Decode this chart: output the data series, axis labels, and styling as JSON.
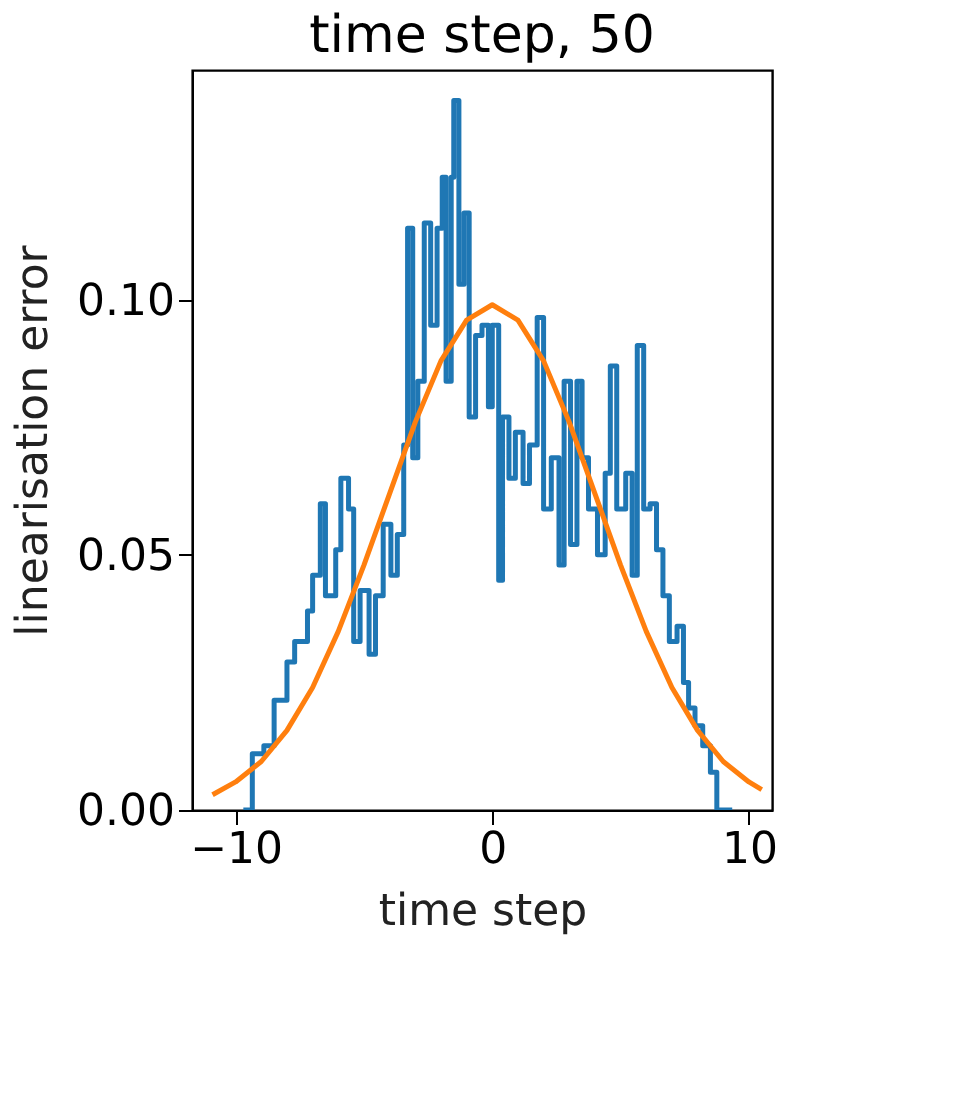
{
  "chart_data": {
    "type": "step",
    "title": "time step, 50",
    "xlabel": "time step",
    "ylabel": "linearisation error",
    "xlim": [
      -11.7,
      10.9
    ],
    "xticks": [
      {
        "value": -10,
        "label": "−10"
      },
      0,
      10
    ],
    "ylim": [
      0,
      0.145
    ],
    "yticks": [
      {
        "value": 0,
        "label": "0.00"
      },
      {
        "value": 0.05,
        "label": "0.05"
      },
      {
        "value": 0.1,
        "label": "0.10"
      }
    ],
    "grid": false,
    "line_style": "solid",
    "marker": "none",
    "series": [
      {
        "color": "#1f77b4",
        "x": [
          -9.7,
          -9.35,
          -8.9,
          -8.5,
          -8.0,
          -7.7,
          -7.2,
          -7.0,
          -6.7,
          -6.5,
          -6.1,
          -5.9,
          -5.6,
          -5.4,
          -5.15,
          -4.8,
          -4.55,
          -4.25,
          -3.95,
          -3.7,
          -3.45,
          -3.3,
          -3.1,
          -2.9,
          -2.65,
          -2.4,
          -2.15,
          -1.95,
          -1.8,
          -1.6,
          -1.5,
          -1.3,
          -1.1,
          -0.9,
          -0.65,
          -0.4,
          -0.15,
          0.0,
          0.25,
          0.4,
          0.65,
          0.9,
          1.2,
          1.45,
          1.75,
          2.0,
          2.3,
          2.6,
          2.8,
          3.05,
          3.3,
          3.5,
          3.75,
          4.1,
          4.4,
          4.6,
          4.85,
          5.2,
          5.45,
          5.65,
          5.9,
          6.15,
          6.4,
          6.65,
          6.9,
          7.2,
          7.45,
          7.65,
          7.9,
          8.2,
          8.5,
          8.75,
          9.35
        ],
        "values": [
          0.0,
          0.011,
          0.0126,
          0.0215,
          0.029,
          0.033,
          0.039,
          0.046,
          0.06,
          0.042,
          0.051,
          0.065,
          0.059,
          0.033,
          0.043,
          0.0305,
          0.042,
          0.056,
          0.046,
          0.054,
          0.0715,
          0.114,
          0.069,
          0.084,
          0.115,
          0.095,
          0.114,
          0.124,
          0.084,
          0.124,
          0.139,
          0.103,
          0.117,
          0.077,
          0.093,
          0.095,
          0.079,
          0.095,
          0.045,
          0.077,
          0.065,
          0.074,
          0.064,
          0.0715,
          0.0965,
          0.059,
          0.069,
          0.048,
          0.084,
          0.052,
          0.084,
          0.069,
          0.059,
          0.05,
          0.066,
          0.087,
          0.059,
          0.066,
          0.046,
          0.091,
          0.059,
          0.06,
          0.051,
          0.042,
          0.033,
          0.036,
          0.025,
          0.02,
          0.0165,
          0.0126,
          0.0074,
          0.0,
          0.0
        ]
      },
      {
        "type": "line",
        "color": "#ff7f0e",
        "x": [
          -10.9,
          -10,
          -9,
          -8,
          -7,
          -6,
          -5,
          -4,
          -3,
          -2,
          -1,
          0,
          1,
          2,
          3,
          4,
          5,
          6,
          7,
          8,
          9,
          10,
          10.5
        ],
        "values": [
          0.003,
          0.0055,
          0.0095,
          0.0156,
          0.024,
          0.035,
          0.048,
          0.062,
          0.076,
          0.088,
          0.096,
          0.099,
          0.096,
          0.088,
          0.076,
          0.062,
          0.048,
          0.035,
          0.024,
          0.0156,
          0.0095,
          0.0055,
          0.004
        ]
      }
    ]
  }
}
